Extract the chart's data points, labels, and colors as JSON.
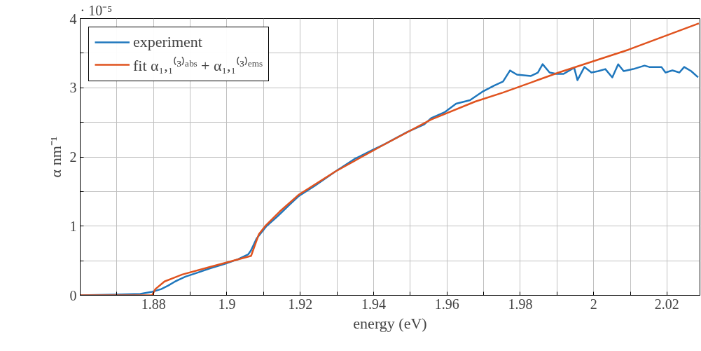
{
  "chart_data": {
    "type": "line",
    "xlabel": "energy (eV)",
    "ylabel": "α nm⁻¹",
    "annotations": [
      "· 10⁻⁵"
    ],
    "xlim": [
      1.86,
      2.029
    ],
    "ylim": [
      0,
      4
    ],
    "xticks": [
      {
        "value": 1.87,
        "label": null
      },
      1.88,
      {
        "value": 1.89,
        "label": null
      },
      1.9,
      {
        "value": 1.91,
        "label": null
      },
      1.92,
      {
        "value": 1.93,
        "label": null
      },
      1.94,
      {
        "value": 1.95,
        "label": null
      },
      1.96,
      {
        "value": 1.97,
        "label": null
      },
      1.98,
      {
        "value": 1.99,
        "label": null
      },
      2,
      {
        "value": 2.01,
        "label": null
      },
      2.02
    ],
    "yticks": [
      0,
      {
        "value": 0.5,
        "label": null
      },
      1,
      {
        "value": 1.5,
        "label": null
      },
      2,
      {
        "value": 2.5,
        "label": null
      },
      3,
      {
        "value": 3.5,
        "label": null
      },
      4
    ],
    "grid": true,
    "legend": "top left",
    "marker": "none",
    "line_style": "solid",
    "series": [
      {
        "name": "experiment",
        "color": "#1f77bd",
        "x": [
          1.86,
          1.8695,
          1.8764,
          1.8796,
          1.8821,
          1.884,
          1.8859,
          1.8887,
          1.8916,
          1.8954,
          1.8992,
          1.903,
          1.9058,
          1.9066,
          1.9081,
          1.9108,
          1.9138,
          1.9171,
          1.9195,
          1.9239,
          1.9296,
          1.9348,
          1.9397,
          1.9429,
          1.9492,
          1.9538,
          1.9557,
          1.9595,
          1.9625,
          1.9663,
          1.9696,
          1.9728,
          1.9753,
          1.9772,
          1.9791,
          1.9829,
          1.9848,
          1.9861,
          1.988,
          1.9899,
          1.9918,
          1.9947,
          1.9956,
          1.9975,
          1.9994,
          2.0013,
          2.0032,
          2.0051,
          2.0067,
          2.0082,
          2.0108,
          2.0139,
          2.0152,
          2.0185,
          2.0196,
          2.0215,
          2.0234,
          2.0247,
          2.0266,
          2.0285
        ],
        "values": [
          0,
          0.01,
          0.02,
          0.05,
          0.09,
          0.14,
          0.2,
          0.27,
          0.32,
          0.39,
          0.45,
          0.52,
          0.59,
          0.65,
          0.82,
          1.0,
          1.14,
          1.31,
          1.43,
          1.58,
          1.79,
          1.97,
          2.1,
          2.18,
          2.36,
          2.47,
          2.56,
          2.65,
          2.77,
          2.82,
          2.94,
          3.03,
          3.09,
          3.25,
          3.19,
          3.17,
          3.22,
          3.34,
          3.22,
          3.2,
          3.2,
          3.29,
          3.11,
          3.3,
          3.22,
          3.24,
          3.27,
          3.15,
          3.34,
          3.24,
          3.27,
          3.32,
          3.3,
          3.3,
          3.22,
          3.25,
          3.22,
          3.3,
          3.24,
          3.15
        ]
      },
      {
        "name": "fit α₁,₁⁽³⁾ᵃᵇˢ + α₁,₁⁽³⁾ᵉᵐˢ",
        "color": "#e0531f",
        "x": [
          1.86,
          1.8796,
          1.8805,
          1.883,
          1.8878,
          1.8954,
          1.9066,
          1.9087,
          1.9106,
          1.9144,
          1.9195,
          1.9296,
          1.9429,
          1.9557,
          1.9677,
          1.9753,
          1.9905,
          2.0095,
          2.0287
        ],
        "values": [
          0,
          0,
          0.09,
          0.2,
          0.3,
          0.41,
          0.57,
          0.88,
          1.01,
          1.21,
          1.45,
          1.79,
          2.18,
          2.54,
          2.8,
          2.93,
          3.22,
          3.55,
          3.93
        ]
      }
    ]
  }
}
